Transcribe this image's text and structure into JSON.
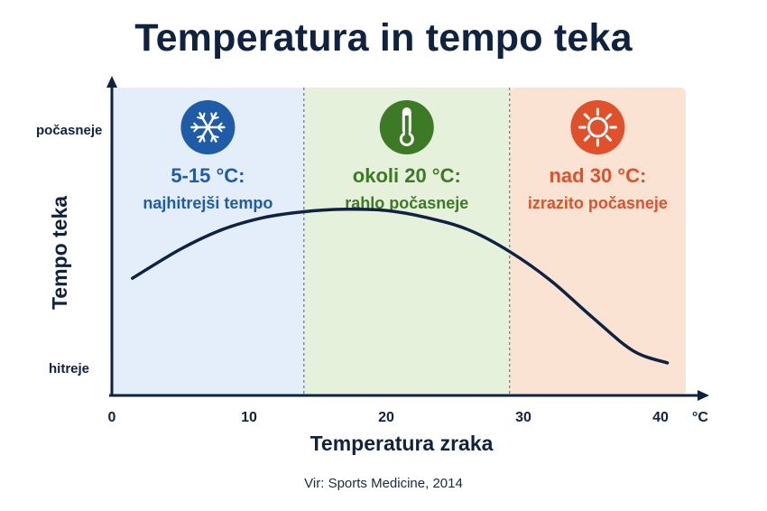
{
  "title": "Temperatura in tempo teka",
  "source": "Vir: Sports Medicine, 2014",
  "colors": {
    "cold_zone": "#e3eefa",
    "mild_zone": "#e6f1dc",
    "hot_zone": "#fbe3d3",
    "cold_text": "#1f5ca8",
    "mild_text": "#3d7a25",
    "hot_text": "#e0502a",
    "ink": "#0f2340"
  },
  "zones": [
    {
      "id": "cold",
      "from": 0,
      "to": 14,
      "icon": "snowflake-icon",
      "range_label": "5-15 °C:",
      "description": "najhitrejši tempo"
    },
    {
      "id": "mild",
      "from": 14,
      "to": 29,
      "icon": "thermometer-icon",
      "range_label": "okoli 20 °C:",
      "description": "rahlo počasneje"
    },
    {
      "id": "hot",
      "from": 29,
      "to": 42,
      "icon": "sun-icon",
      "range_label": "nad 30 °C:",
      "description": "izrazito počasneje"
    }
  ],
  "chart_data": {
    "type": "line",
    "xlabel": "Temperatura zraka",
    "ylabel": "Tempo teka",
    "x_unit": "°C",
    "x_ticks": [
      0,
      10,
      20,
      30,
      40
    ],
    "xlim": [
      0,
      42
    ],
    "y_tick_labels": {
      "top": "počasneje",
      "bottom": "hitreje"
    },
    "grid": false,
    "series": [
      {
        "points": [
          [
            1.5,
            0.38
          ],
          [
            5,
            0.5
          ],
          [
            8,
            0.58
          ],
          [
            11,
            0.63
          ],
          [
            14,
            0.655
          ],
          [
            17,
            0.665
          ],
          [
            20,
            0.66
          ],
          [
            23,
            0.63
          ],
          [
            26,
            0.58
          ],
          [
            29,
            0.49
          ],
          [
            32,
            0.37
          ],
          [
            35,
            0.22
          ],
          [
            38,
            0.08
          ],
          [
            40.5,
            0.03
          ]
        ]
      }
    ]
  }
}
